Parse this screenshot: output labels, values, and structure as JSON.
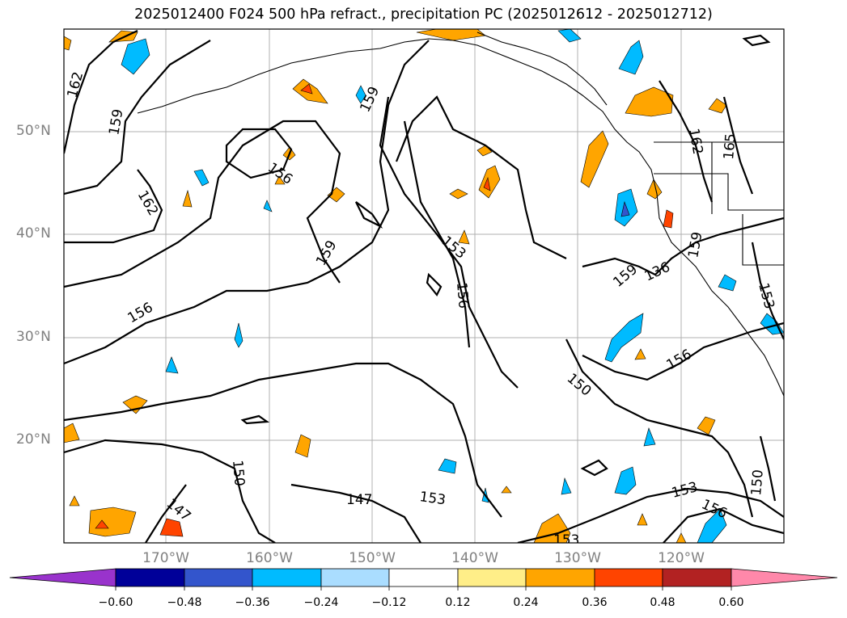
{
  "title": "2025012400 F024 500 hPa refract., precipitation PC (2025012612 - 2025012712)",
  "latitude_labels": [
    "50°N",
    "40°N",
    "30°N",
    "20°N"
  ],
  "longitude_labels": [
    "170°W",
    "160°W",
    "150°W",
    "140°W",
    "130°W",
    "120°W"
  ],
  "contour_labels": [
    "162",
    "159",
    "162",
    "156",
    "159",
    "156",
    "150",
    "147",
    "159",
    "153",
    "156",
    "147",
    "153",
    "153",
    "150",
    "159",
    "136",
    "156",
    "150",
    "153",
    "156",
    "162",
    "165",
    "159",
    "153",
    "150"
  ],
  "colorbar": {
    "tick_labels": [
      "−0.60",
      "−0.48",
      "−0.36",
      "−0.24",
      "−0.12",
      "0.12",
      "0.24",
      "0.36",
      "0.48",
      "0.60"
    ],
    "colors": [
      "#9933cc",
      "#000099",
      "#3355cc",
      "#00bbff",
      "#aaddff",
      "#ffffff",
      "#ffee88",
      "#ffa500",
      "#ff4400",
      "#b22222",
      "#ff88aa"
    ]
  },
  "fill_colors": {
    "light_orange": "#ffee88",
    "orange": "#ffa500",
    "red": "#ff4400",
    "light_blue": "#aaddff",
    "blue": "#00bbff",
    "dark_blue": "#3355cc"
  }
}
